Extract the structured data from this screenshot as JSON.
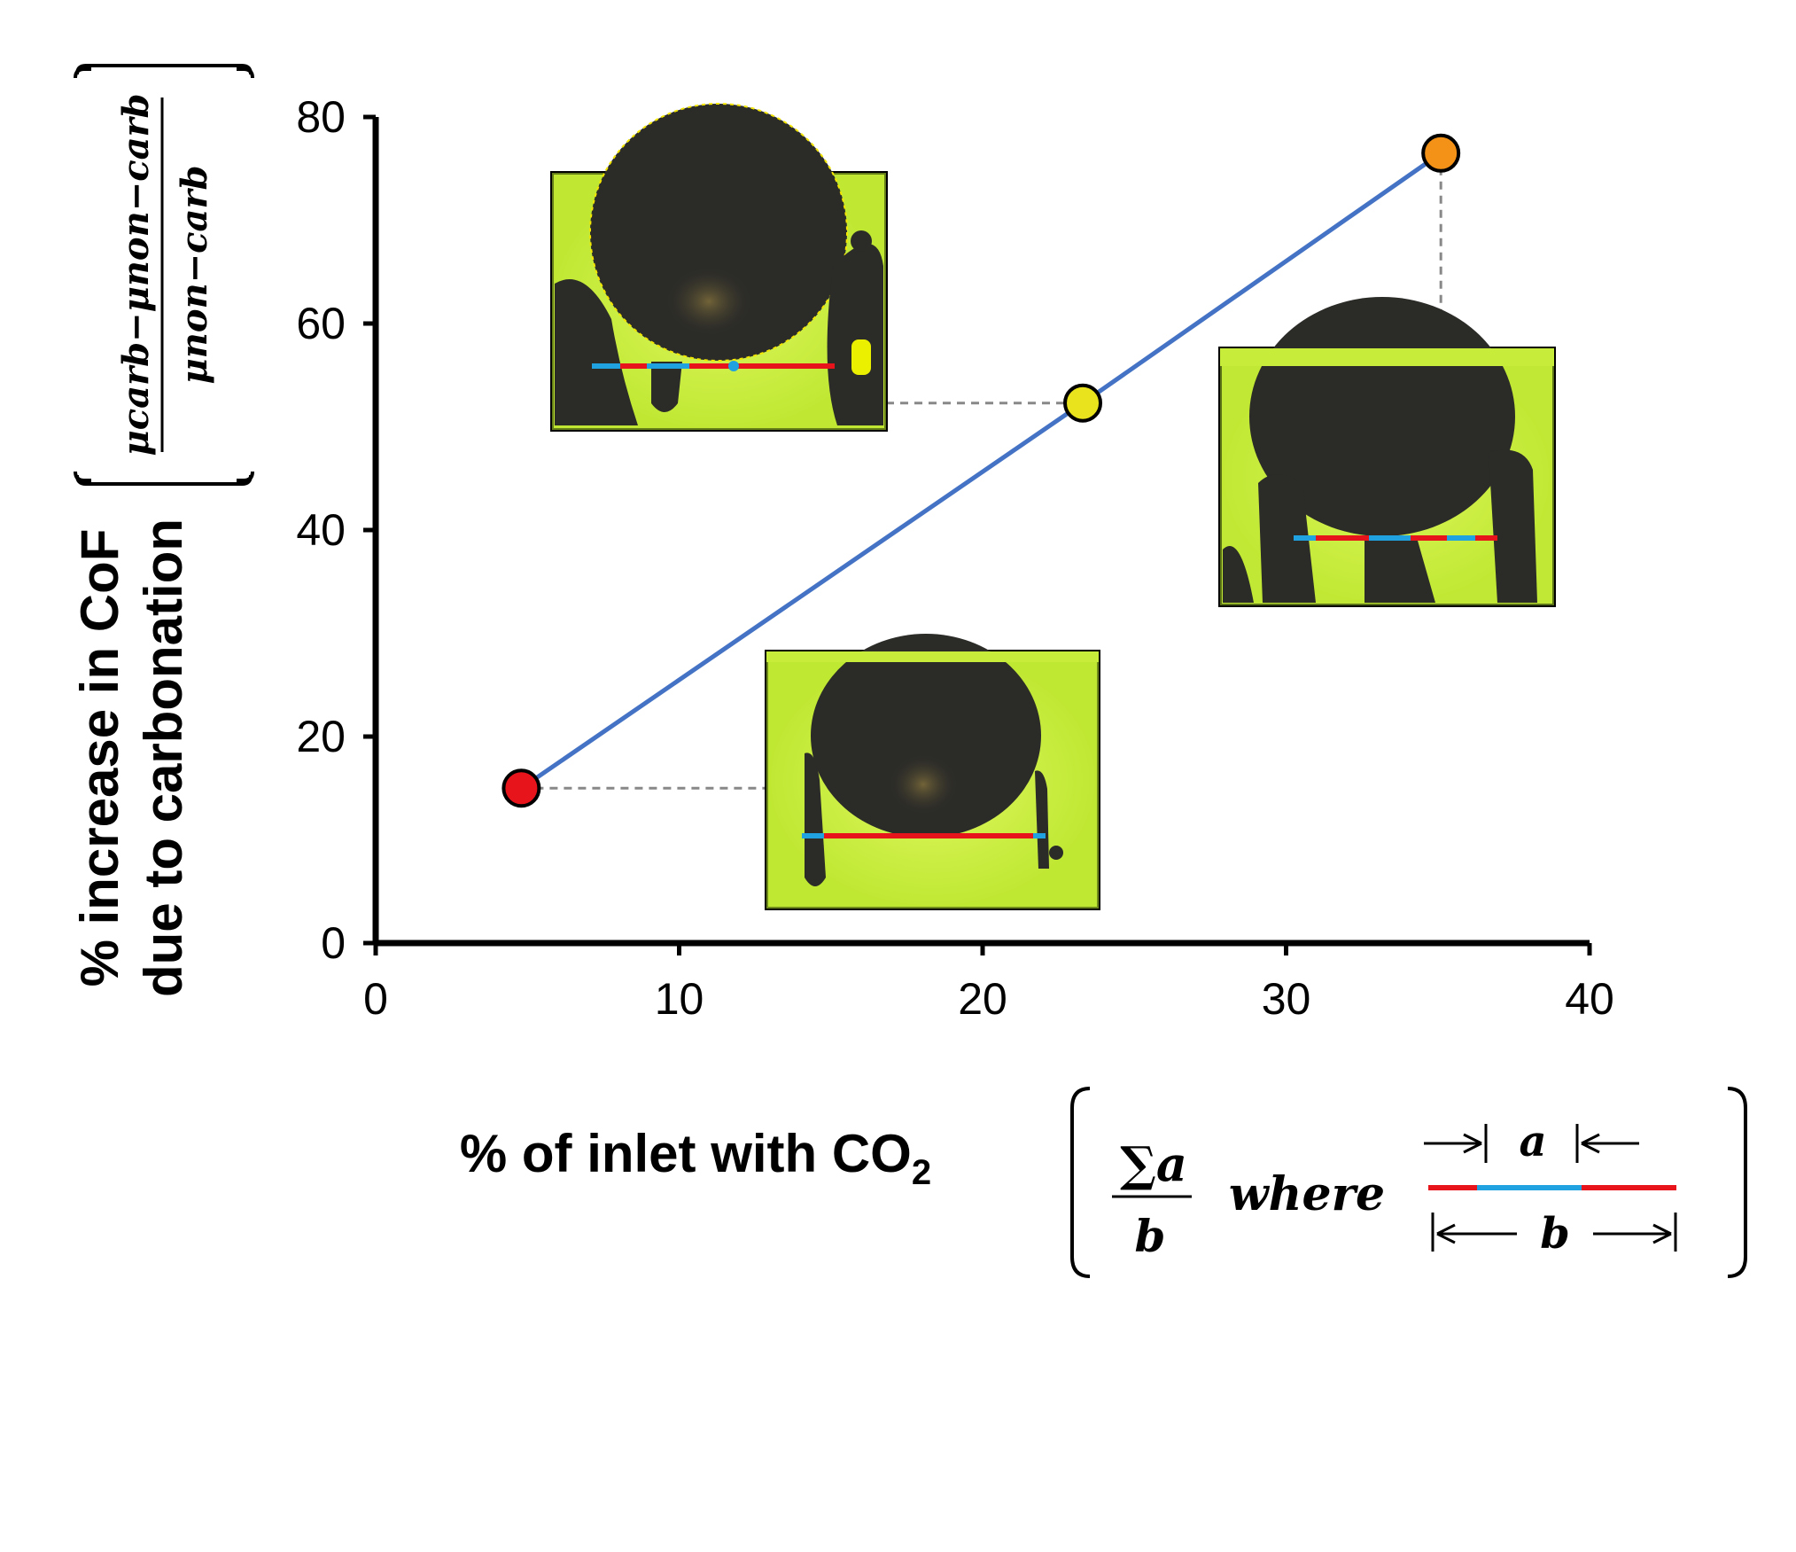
{
  "chart_data": {
    "type": "scatter",
    "title": "",
    "xlabel": "% of inlet with CO",
    "xlabel_subscript": "2",
    "ylabel_line1": "% increase in CoF",
    "ylabel_line2": "due to carbonation",
    "ylabel_formula": {
      "numerator": "μcarb−μnon−carb",
      "denominator": "μnon−carb"
    },
    "xlim": [
      0,
      40
    ],
    "ylim": [
      0,
      80
    ],
    "xticks": [
      "0",
      "10",
      "20",
      "30",
      "40"
    ],
    "yticks": [
      "0",
      "20",
      "40",
      "60",
      "80"
    ],
    "grid": false,
    "series": [
      {
        "points": [
          {
            "x": 4.8,
            "y": 15.0,
            "color": "#e8141b"
          },
          {
            "x": 23.3,
            "y": 52.3,
            "color": "#e8e31c"
          },
          {
            "x": 35.1,
            "y": 76.5,
            "color": "#f39217"
          }
        ],
        "line_color": "#4472c4"
      }
    ],
    "legend_box": {
      "fraction_numerator": "∑a",
      "fraction_denominator": "b",
      "where_label": "where",
      "segment_a_label": "a",
      "segment_b_label": "b"
    },
    "insets": [
      "contact image for low CO2",
      "contact image for mid CO2",
      "contact image for high CO2"
    ]
  },
  "colors": {
    "segment_red": "#e8141b",
    "segment_blue": "#1fa2df",
    "inset_green": "#c8ec3a",
    "inset_dark": "#2b2b28"
  }
}
